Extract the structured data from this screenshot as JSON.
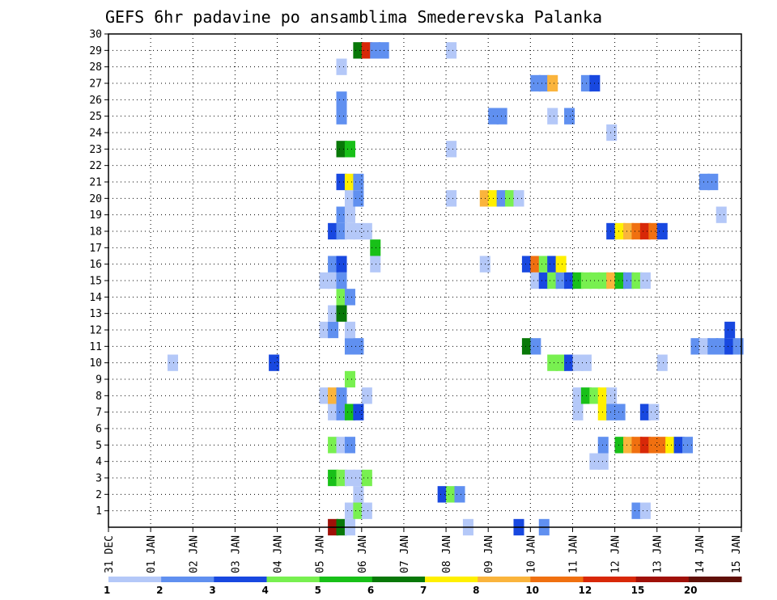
{
  "chart_data": {
    "type": "heatmap",
    "title": "GEFS 6hr padavine po ansamblima Smederevska Palanka",
    "x_ticks": [
      "31 DEC",
      "01 JAN",
      "02 JAN",
      "03 JAN",
      "04 JAN",
      "05 JAN",
      "06 JAN",
      "07 JAN",
      "08 JAN",
      "09 JAN",
      "10 JAN",
      "11 JAN",
      "12 JAN",
      "13 JAN",
      "14 JAN",
      "15 JAN"
    ],
    "x_range_days": [
      0,
      15
    ],
    "y_ticks": [
      "1",
      "2",
      "3",
      "4",
      "5",
      "6",
      "7",
      "8",
      "9",
      "10",
      "11",
      "12",
      "13",
      "14",
      "15",
      "16",
      "17",
      "18",
      "19",
      "20",
      "21",
      "22",
      "23",
      "24",
      "25",
      "26",
      "27",
      "28",
      "29",
      "30"
    ],
    "y_range": [
      0,
      30
    ],
    "grid": true,
    "legend_placement": "bottom",
    "legend": {
      "labels": [
        "1",
        "2",
        "3",
        "4",
        "5",
        "6",
        "7",
        "8",
        "10",
        "12",
        "15",
        "20"
      ],
      "colors": [
        "#b4c8f8",
        "#6090f0",
        "#1848e0",
        "#78f050",
        "#18c018",
        "#087808",
        "#fff000",
        "#fab43c",
        "#f07010",
        "#d82808",
        "#a01008",
        "#601008"
      ]
    },
    "cells": [
      {
        "m": 0,
        "d": 5.2,
        "c": 10
      },
      {
        "m": 0,
        "d": 5.4,
        "c": 5
      },
      {
        "m": 0,
        "d": 5.6,
        "c": 0
      },
      {
        "m": 0,
        "d": 9.6,
        "c": 2
      },
      {
        "m": 0,
        "d": 10.2,
        "c": 1
      },
      {
        "m": 0,
        "d": 8.4,
        "c": 0
      },
      {
        "m": 1,
        "d": 5.6,
        "c": 0
      },
      {
        "m": 1,
        "d": 5.8,
        "c": 3
      },
      {
        "m": 1,
        "d": 6.0,
        "c": 0
      },
      {
        "m": 1,
        "d": 12.4,
        "c": 1
      },
      {
        "m": 1,
        "d": 12.6,
        "c": 0
      },
      {
        "m": 2,
        "d": 5.8,
        "c": 0
      },
      {
        "m": 2,
        "d": 7.8,
        "c": 2
      },
      {
        "m": 2,
        "d": 8.0,
        "c": 3
      },
      {
        "m": 2,
        "d": 8.2,
        "c": 1
      },
      {
        "m": 3,
        "d": 5.2,
        "c": 4
      },
      {
        "m": 3,
        "d": 5.4,
        "c": 3
      },
      {
        "m": 3,
        "d": 5.6,
        "c": 0
      },
      {
        "m": 3,
        "d": 5.8,
        "c": 0
      },
      {
        "m": 3,
        "d": 6.0,
        "c": 3
      },
      {
        "m": 4,
        "d": 11.4,
        "c": 0
      },
      {
        "m": 4,
        "d": 11.6,
        "c": 0
      },
      {
        "m": 5,
        "d": 5.2,
        "c": 3
      },
      {
        "m": 5,
        "d": 5.4,
        "c": 0
      },
      {
        "m": 5,
        "d": 5.6,
        "c": 1
      },
      {
        "m": 5,
        "d": 11.6,
        "c": 1
      },
      {
        "m": 5,
        "d": 12.0,
        "c": 4
      },
      {
        "m": 5,
        "d": 12.2,
        "c": 7
      },
      {
        "m": 5,
        "d": 12.4,
        "c": 8
      },
      {
        "m": 5,
        "d": 12.6,
        "c": 9
      },
      {
        "m": 5,
        "d": 12.8,
        "c": 8
      },
      {
        "m": 5,
        "d": 13.0,
        "c": 8
      },
      {
        "m": 5,
        "d": 13.2,
        "c": 6
      },
      {
        "m": 5,
        "d": 13.4,
        "c": 2
      },
      {
        "m": 5,
        "d": 13.6,
        "c": 1
      },
      {
        "m": 7,
        "d": 5.2,
        "c": 0
      },
      {
        "m": 7,
        "d": 5.4,
        "c": 1
      },
      {
        "m": 7,
        "d": 5.6,
        "c": 4
      },
      {
        "m": 7,
        "d": 5.8,
        "c": 2
      },
      {
        "m": 7,
        "d": 11.0,
        "c": 0
      },
      {
        "m": 7,
        "d": 11.6,
        "c": 6
      },
      {
        "m": 7,
        "d": 11.8,
        "c": 1
      },
      {
        "m": 7,
        "d": 12.0,
        "c": 1
      },
      {
        "m": 7,
        "d": 12.6,
        "c": 2
      },
      {
        "m": 7,
        "d": 12.8,
        "c": 0
      },
      {
        "m": 8,
        "d": 5.0,
        "c": 0
      },
      {
        "m": 8,
        "d": 5.2,
        "c": 7
      },
      {
        "m": 8,
        "d": 5.4,
        "c": 1
      },
      {
        "m": 8,
        "d": 6.0,
        "c": 0
      },
      {
        "m": 8,
        "d": 11.0,
        "c": 0
      },
      {
        "m": 8,
        "d": 11.2,
        "c": 4
      },
      {
        "m": 8,
        "d": 11.4,
        "c": 3
      },
      {
        "m": 8,
        "d": 11.6,
        "c": 6
      },
      {
        "m": 8,
        "d": 11.8,
        "c": 0
      },
      {
        "m": 9,
        "d": 5.6,
        "c": 3
      },
      {
        "m": 10,
        "d": 1.4,
        "c": 0
      },
      {
        "m": 10,
        "d": 3.8,
        "c": 2
      },
      {
        "m": 10,
        "d": 10.4,
        "c": 3
      },
      {
        "m": 10,
        "d": 10.6,
        "c": 3
      },
      {
        "m": 10,
        "d": 10.8,
        "c": 2
      },
      {
        "m": 10,
        "d": 11.0,
        "c": 0
      },
      {
        "m": 10,
        "d": 11.2,
        "c": 0
      },
      {
        "m": 10,
        "d": 13.0,
        "c": 0
      },
      {
        "m": 11,
        "d": 5.6,
        "c": 1
      },
      {
        "m": 11,
        "d": 5.8,
        "c": 1
      },
      {
        "m": 11,
        "d": 9.8,
        "c": 5
      },
      {
        "m": 11,
        "d": 10.0,
        "c": 1
      },
      {
        "m": 11,
        "d": 13.8,
        "c": 1
      },
      {
        "m": 11,
        "d": 14.0,
        "c": 0
      },
      {
        "m": 11,
        "d": 14.2,
        "c": 1
      },
      {
        "m": 11,
        "d": 14.4,
        "c": 1
      },
      {
        "m": 11,
        "d": 14.6,
        "c": 2
      },
      {
        "m": 11,
        "d": 14.8,
        "c": 1
      },
      {
        "m": 12,
        "d": 5.0,
        "c": 0
      },
      {
        "m": 12,
        "d": 5.2,
        "c": 1
      },
      {
        "m": 12,
        "d": 5.6,
        "c": 0
      },
      {
        "m": 12,
        "d": 14.6,
        "c": 2
      },
      {
        "m": 13,
        "d": 5.2,
        "c": 0
      },
      {
        "m": 13,
        "d": 5.4,
        "c": 5
      },
      {
        "m": 14,
        "d": 5.4,
        "c": 3
      },
      {
        "m": 14,
        "d": 5.6,
        "c": 1
      },
      {
        "m": 15,
        "d": 5.0,
        "c": 0
      },
      {
        "m": 15,
        "d": 5.2,
        "c": 0
      },
      {
        "m": 15,
        "d": 5.4,
        "c": 1
      },
      {
        "m": 15,
        "d": 10.0,
        "c": 0
      },
      {
        "m": 15,
        "d": 10.2,
        "c": 2
      },
      {
        "m": 15,
        "d": 10.4,
        "c": 3
      },
      {
        "m": 15,
        "d": 10.6,
        "c": 1
      },
      {
        "m": 15,
        "d": 10.8,
        "c": 2
      },
      {
        "m": 15,
        "d": 11.0,
        "c": 4
      },
      {
        "m": 15,
        "d": 11.2,
        "c": 3
      },
      {
        "m": 15,
        "d": 11.4,
        "c": 3
      },
      {
        "m": 15,
        "d": 11.6,
        "c": 3
      },
      {
        "m": 15,
        "d": 11.8,
        "c": 7
      },
      {
        "m": 15,
        "d": 12.0,
        "c": 4
      },
      {
        "m": 15,
        "d": 12.2,
        "c": 1
      },
      {
        "m": 15,
        "d": 12.4,
        "c": 3
      },
      {
        "m": 15,
        "d": 12.6,
        "c": 0
      },
      {
        "m": 16,
        "d": 5.2,
        "c": 1
      },
      {
        "m": 16,
        "d": 5.4,
        "c": 2
      },
      {
        "m": 16,
        "d": 6.2,
        "c": 0
      },
      {
        "m": 16,
        "d": 8.8,
        "c": 0
      },
      {
        "m": 16,
        "d": 9.8,
        "c": 2
      },
      {
        "m": 16,
        "d": 10.0,
        "c": 8
      },
      {
        "m": 16,
        "d": 10.2,
        "c": 3
      },
      {
        "m": 16,
        "d": 10.4,
        "c": 2
      },
      {
        "m": 16,
        "d": 10.6,
        "c": 6
      },
      {
        "m": 17,
        "d": 6.2,
        "c": 4
      },
      {
        "m": 18,
        "d": 5.2,
        "c": 2
      },
      {
        "m": 18,
        "d": 5.4,
        "c": 1
      },
      {
        "m": 18,
        "d": 5.6,
        "c": 0
      },
      {
        "m": 18,
        "d": 5.8,
        "c": 0
      },
      {
        "m": 18,
        "d": 6.0,
        "c": 0
      },
      {
        "m": 18,
        "d": 11.8,
        "c": 2
      },
      {
        "m": 18,
        "d": 12.0,
        "c": 6
      },
      {
        "m": 18,
        "d": 12.2,
        "c": 7
      },
      {
        "m": 18,
        "d": 12.4,
        "c": 8
      },
      {
        "m": 18,
        "d": 12.6,
        "c": 9
      },
      {
        "m": 18,
        "d": 12.8,
        "c": 8
      },
      {
        "m": 18,
        "d": 13.0,
        "c": 2
      },
      {
        "m": 19,
        "d": 5.4,
        "c": 1
      },
      {
        "m": 19,
        "d": 5.6,
        "c": 0
      },
      {
        "m": 19,
        "d": 14.4,
        "c": 0
      },
      {
        "m": 20,
        "d": 5.6,
        "c": 0
      },
      {
        "m": 20,
        "d": 5.8,
        "c": 1
      },
      {
        "m": 20,
        "d": 8.0,
        "c": 0
      },
      {
        "m": 20,
        "d": 8.8,
        "c": 7
      },
      {
        "m": 20,
        "d": 9.0,
        "c": 6
      },
      {
        "m": 20,
        "d": 9.2,
        "c": 1
      },
      {
        "m": 20,
        "d": 9.4,
        "c": 3
      },
      {
        "m": 20,
        "d": 9.6,
        "c": 0
      },
      {
        "m": 21,
        "d": 5.4,
        "c": 2
      },
      {
        "m": 21,
        "d": 5.6,
        "c": 6
      },
      {
        "m": 21,
        "d": 5.8,
        "c": 1
      },
      {
        "m": 21,
        "d": 14.0,
        "c": 1
      },
      {
        "m": 21,
        "d": 14.2,
        "c": 1
      },
      {
        "m": 23,
        "d": 5.4,
        "c": 5
      },
      {
        "m": 23,
        "d": 5.6,
        "c": 4
      },
      {
        "m": 23,
        "d": 8.0,
        "c": 0
      },
      {
        "m": 24,
        "d": 11.8,
        "c": 0
      },
      {
        "m": 25,
        "d": 5.4,
        "c": 1
      },
      {
        "m": 25,
        "d": 9.0,
        "c": 1
      },
      {
        "m": 25,
        "d": 9.2,
        "c": 1
      },
      {
        "m": 25,
        "d": 10.4,
        "c": 0
      },
      {
        "m": 25,
        "d": 10.8,
        "c": 1
      },
      {
        "m": 26,
        "d": 5.4,
        "c": 1
      },
      {
        "m": 27,
        "d": 10.0,
        "c": 1
      },
      {
        "m": 27,
        "d": 10.2,
        "c": 1
      },
      {
        "m": 27,
        "d": 10.4,
        "c": 7
      },
      {
        "m": 27,
        "d": 11.2,
        "c": 1
      },
      {
        "m": 27,
        "d": 11.4,
        "c": 2
      },
      {
        "m": 28,
        "d": 5.4,
        "c": 0
      },
      {
        "m": 29,
        "d": 5.8,
        "c": 5
      },
      {
        "m": 29,
        "d": 6.0,
        "c": 9
      },
      {
        "m": 29,
        "d": 6.2,
        "c": 1
      },
      {
        "m": 29,
        "d": 6.4,
        "c": 1
      },
      {
        "m": 29,
        "d": 8.0,
        "c": 0
      }
    ]
  }
}
